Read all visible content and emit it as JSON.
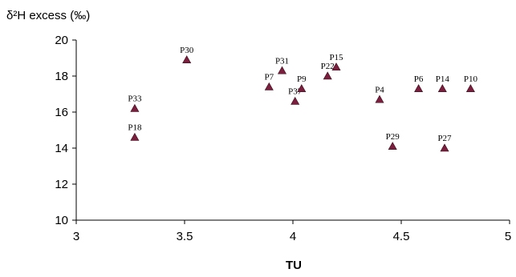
{
  "chart_data": {
    "type": "scatter",
    "title": "",
    "xlabel": "TU",
    "ylabel": "δ²H excess (‰)",
    "xlim": [
      3,
      5
    ],
    "ylim": [
      10,
      20
    ],
    "xticks": [
      "3",
      "3.5",
      "4",
      "4.5",
      "5"
    ],
    "yticks": [
      "10",
      "12",
      "14",
      "16",
      "18",
      "20"
    ],
    "marker": "triangle",
    "marker_color": "#7a1f3d",
    "grid": false,
    "points": [
      {
        "label": "P33",
        "x": 3.27,
        "y": 16.2
      },
      {
        "label": "P18",
        "x": 3.27,
        "y": 14.6
      },
      {
        "label": "P30",
        "x": 3.51,
        "y": 18.9
      },
      {
        "label": "P7",
        "x": 3.89,
        "y": 17.4
      },
      {
        "label": "P31",
        "x": 3.95,
        "y": 18.3
      },
      {
        "label": "P37",
        "x": 4.01,
        "y": 16.6
      },
      {
        "label": "P9",
        "x": 4.04,
        "y": 17.3
      },
      {
        "label": "P22",
        "x": 4.16,
        "y": 18.0
      },
      {
        "label": "P15",
        "x": 4.2,
        "y": 18.5
      },
      {
        "label": "P4",
        "x": 4.4,
        "y": 16.7
      },
      {
        "label": "P29",
        "x": 4.46,
        "y": 14.1
      },
      {
        "label": "P6",
        "x": 4.58,
        "y": 17.3
      },
      {
        "label": "P14",
        "x": 4.69,
        "y": 17.3
      },
      {
        "label": "P27",
        "x": 4.7,
        "y": 14.0
      },
      {
        "label": "P10",
        "x": 4.82,
        "y": 17.3
      }
    ]
  }
}
